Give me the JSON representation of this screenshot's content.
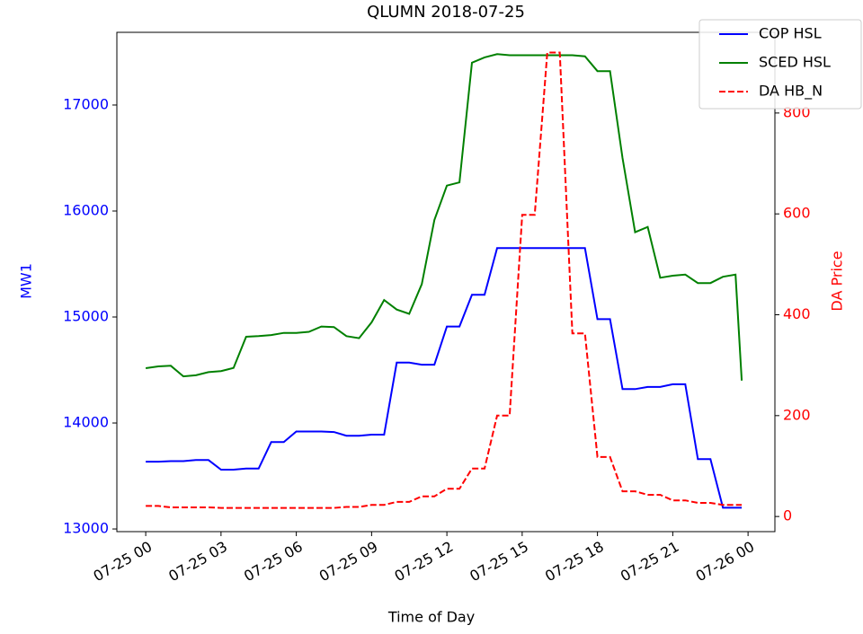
{
  "chart_data": {
    "type": "line",
    "title": "QLUMN 2018-07-25",
    "x_label": "Time of Day",
    "y_label": "MW1",
    "y2_label": "DA Price",
    "y_color": "#0000ff",
    "y2_color": "#ff0000",
    "legend": "upper right",
    "x": [
      0,
      0.5,
      1,
      1.5,
      2,
      2.5,
      3,
      3.5,
      4,
      4.5,
      5,
      5.5,
      6,
      6.5,
      7,
      7.5,
      8,
      8.5,
      9,
      9.5,
      10,
      10.5,
      11,
      11.5,
      12,
      12.5,
      13,
      13.5,
      14,
      14.5,
      15,
      15.5,
      16,
      16.5,
      17,
      17.5,
      18,
      18.5,
      19,
      19.5,
      20,
      20.5,
      21,
      21.5,
      22,
      22.5,
      23,
      23.5,
      23.75
    ],
    "xlim": [
      -1.15,
      25.07
    ],
    "xticks": [
      {
        "value": 0,
        "label": "07-25 00"
      },
      {
        "value": 3,
        "label": "07-25 03"
      },
      {
        "value": 6,
        "label": "07-25 06"
      },
      {
        "value": 9,
        "label": "07-25 09"
      },
      {
        "value": 12,
        "label": "07-25 12"
      },
      {
        "value": 15,
        "label": "07-25 15"
      },
      {
        "value": 18,
        "label": "07-25 18"
      },
      {
        "value": 21,
        "label": "07-25 21"
      },
      {
        "value": 24,
        "label": "07-26 00"
      }
    ],
    "ylim": [
      12975,
      17686
    ],
    "yticks": [
      13000,
      14000,
      15000,
      16000,
      17000
    ],
    "y2lim": [
      -30,
      960
    ],
    "y2ticks": [
      0,
      200,
      400,
      600,
      800
    ],
    "series": [
      {
        "name": "COP HSL",
        "color": "#0000ff",
        "dash": false,
        "values": [
          13635,
          13635,
          13640,
          13640,
          13650,
          13650,
          13560,
          13560,
          13570,
          13570,
          13820,
          13820,
          13920,
          13920,
          13920,
          13915,
          13880,
          13880,
          13890,
          13890,
          14570,
          14570,
          14550,
          14550,
          14910,
          14910,
          15210,
          15210,
          15650,
          15650,
          15650,
          15650,
          15650,
          15650,
          15650,
          15650,
          14980,
          14980,
          14320,
          14320,
          14340,
          14340,
          14365,
          14365,
          13660,
          13660,
          13200,
          13200,
          13200
        ]
      },
      {
        "name": "SCED HSL",
        "color": "#008000",
        "dash": false,
        "values": [
          14517,
          14534,
          14540,
          14440,
          14450,
          14480,
          14490,
          14520,
          14814,
          14820,
          14830,
          14850,
          14850,
          14860,
          14910,
          14905,
          14820,
          14800,
          14950,
          15160,
          15070,
          15030,
          15310,
          15915,
          16240,
          16270,
          17400,
          17450,
          17480,
          17470,
          17470,
          17470,
          17470,
          17470,
          17470,
          17460,
          17320,
          17320,
          16500,
          15800,
          15850,
          15370,
          15390,
          15400,
          15320,
          15320,
          15380,
          15400,
          14400
        ]
      },
      {
        "name": "DA HB_N",
        "color": "#ff0000",
        "dash": true,
        "axis": "y2",
        "values": [
          21,
          21,
          18,
          18,
          18,
          18,
          17,
          17,
          17,
          17,
          17,
          17,
          17,
          17,
          17,
          17,
          19,
          19,
          23,
          23,
          29,
          29,
          40,
          40,
          55,
          55,
          95,
          95,
          200,
          200,
          598,
          598,
          920,
          920,
          363,
          363,
          118,
          118,
          50,
          50,
          43,
          43,
          32,
          32,
          27,
          27,
          23,
          23,
          23
        ]
      }
    ]
  }
}
